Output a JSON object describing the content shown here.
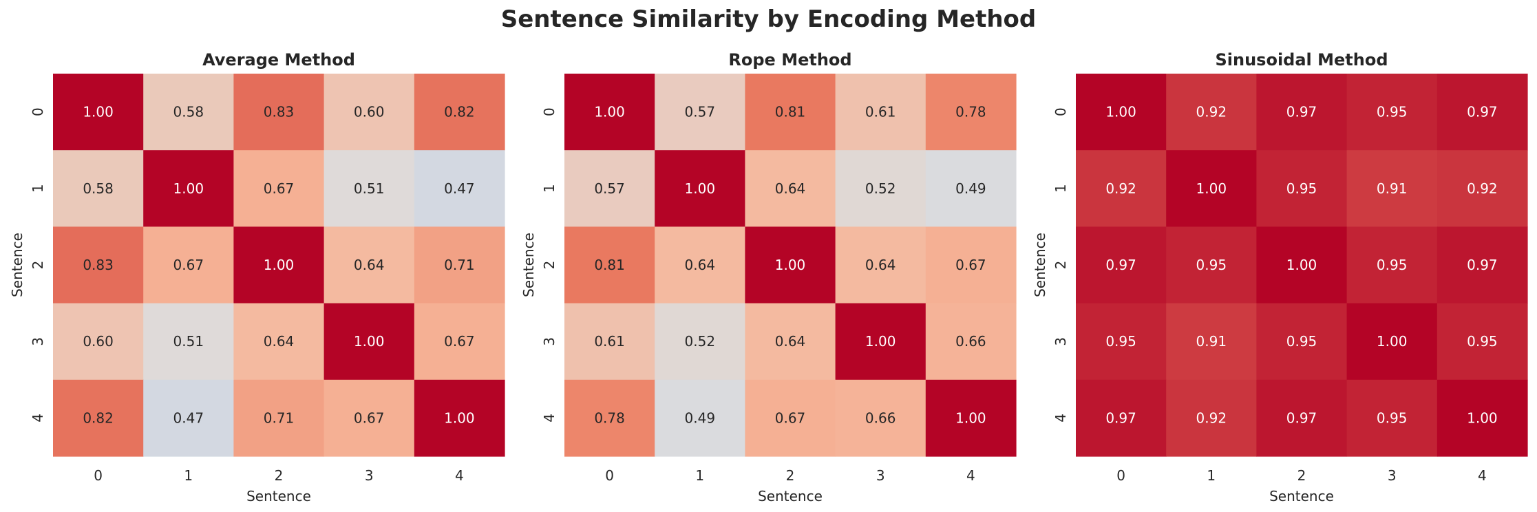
{
  "title": "Sentence Similarity by Encoding Method",
  "colors": {
    "low": "#3b4cc0",
    "mid": "#dddddd",
    "high": "#b40426",
    "text_dark": "#262626",
    "text_light": "#ffffff"
  },
  "chart_data": [
    {
      "type": "heatmap",
      "title": "Average Method",
      "xlabel": "Sentence",
      "ylabel": "Sentence",
      "x_ticks": [
        "0",
        "1",
        "2",
        "3",
        "4"
      ],
      "y_ticks": [
        "0",
        "1",
        "2",
        "3",
        "4"
      ],
      "vmin": 0,
      "vmax": 1,
      "colormap": "coolwarm",
      "values": [
        [
          1.0,
          0.58,
          0.83,
          0.6,
          0.82
        ],
        [
          0.58,
          1.0,
          0.67,
          0.51,
          0.47
        ],
        [
          0.83,
          0.67,
          1.0,
          0.64,
          0.71
        ],
        [
          0.6,
          0.51,
          0.64,
          1.0,
          0.67
        ],
        [
          0.82,
          0.47,
          0.71,
          0.67,
          1.0
        ]
      ]
    },
    {
      "type": "heatmap",
      "title": "Rope Method",
      "xlabel": "Sentence",
      "ylabel": "Sentence",
      "x_ticks": [
        "0",
        "1",
        "2",
        "3",
        "4"
      ],
      "y_ticks": [
        "0",
        "1",
        "2",
        "3",
        "4"
      ],
      "vmin": 0,
      "vmax": 1,
      "colormap": "coolwarm",
      "values": [
        [
          1.0,
          0.57,
          0.81,
          0.61,
          0.78
        ],
        [
          0.57,
          1.0,
          0.64,
          0.52,
          0.49
        ],
        [
          0.81,
          0.64,
          1.0,
          0.64,
          0.67
        ],
        [
          0.61,
          0.52,
          0.64,
          1.0,
          0.66
        ],
        [
          0.78,
          0.49,
          0.67,
          0.66,
          1.0
        ]
      ]
    },
    {
      "type": "heatmap",
      "title": "Sinusoidal Method",
      "xlabel": "Sentence",
      "ylabel": "Sentence",
      "x_ticks": [
        "0",
        "1",
        "2",
        "3",
        "4"
      ],
      "y_ticks": [
        "0",
        "1",
        "2",
        "3",
        "4"
      ],
      "vmin": 0,
      "vmax": 1,
      "colormap": "coolwarm",
      "values": [
        [
          1.0,
          0.92,
          0.97,
          0.95,
          0.97
        ],
        [
          0.92,
          1.0,
          0.95,
          0.91,
          0.92
        ],
        [
          0.97,
          0.95,
          1.0,
          0.95,
          0.97
        ],
        [
          0.95,
          0.91,
          0.95,
          1.0,
          0.95
        ],
        [
          0.97,
          0.92,
          0.97,
          0.95,
          1.0
        ]
      ]
    }
  ]
}
